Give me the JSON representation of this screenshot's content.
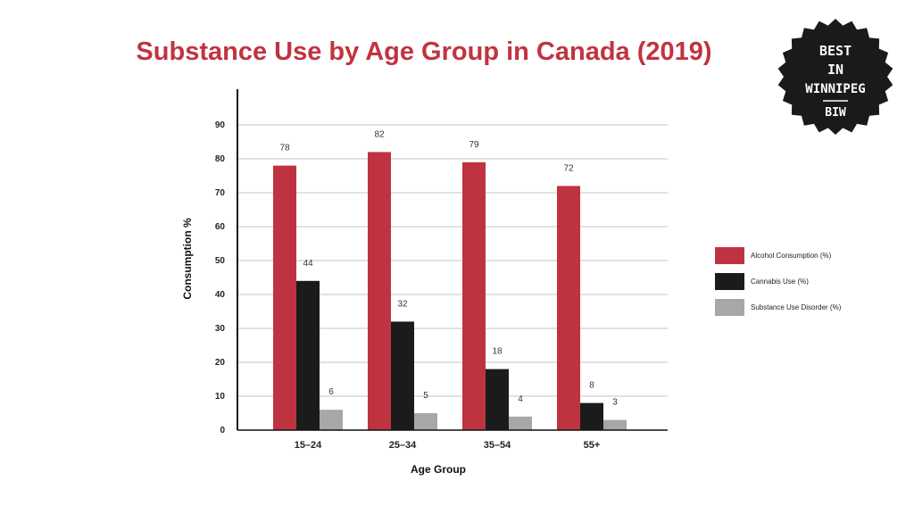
{
  "badge": {
    "line1": "BEST",
    "line2": "IN",
    "line3": "WINNIPEG",
    "line4": "BIW",
    "color": "#1a1a1a"
  },
  "chart_data": {
    "type": "bar",
    "title": "Substance Use by Age Group in Canada (2019)",
    "xlabel": "Age Group",
    "ylabel": "Consumption %",
    "categories": [
      "15–24",
      "25–34",
      "35–54",
      "55+"
    ],
    "series": [
      {
        "name": "Alcohol Consumption (%)",
        "color": "#bf3340",
        "values": [
          78,
          82,
          79,
          72
        ]
      },
      {
        "name": "Cannabis Use (%)",
        "color": "#1b1b1b",
        "values": [
          44,
          32,
          18,
          8
        ]
      },
      {
        "name": "Substance Use Disorder (%)",
        "color": "#a7a7a7",
        "values": [
          6,
          5,
          4,
          3
        ]
      }
    ],
    "ylim": [
      0,
      90
    ],
    "yticks": [
      0,
      10,
      20,
      30,
      40,
      50,
      60,
      70,
      80,
      90
    ],
    "grid": true,
    "legend": "right"
  }
}
